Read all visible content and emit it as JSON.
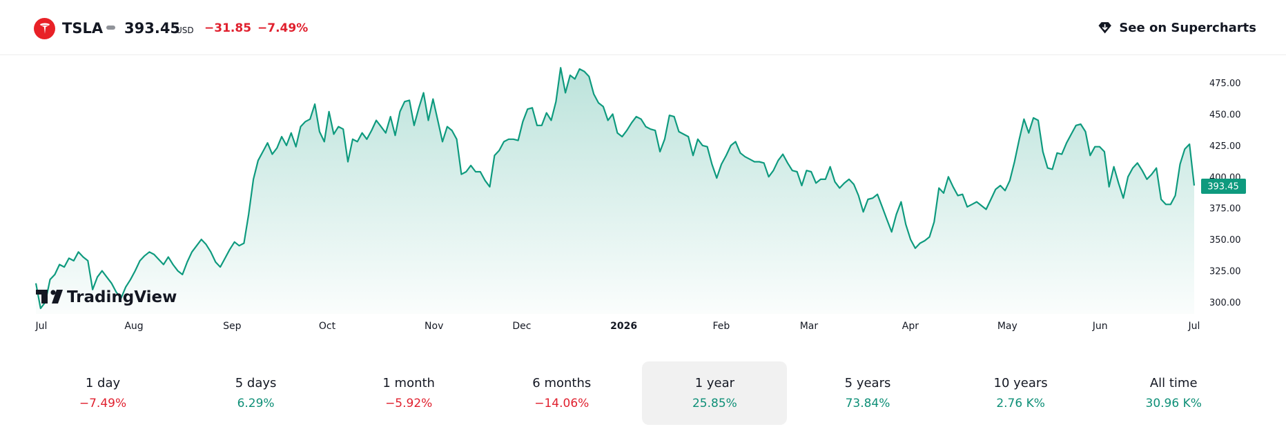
{
  "header": {
    "symbol": "TSLA",
    "price": "393.45",
    "currency": "USD",
    "change": "−31.85",
    "change_pct": "−7.49%",
    "supercharts_label": "See on Supercharts"
  },
  "colors": {
    "line": "#0e9a7e",
    "positive": "#0e8f77",
    "negative": "#e0202e",
    "brand_logo": "#e82127"
  },
  "chart_data": {
    "type": "area",
    "watermark": "TradingView",
    "x_ticks": [
      "Jul",
      "Aug",
      "Sep",
      "Oct",
      "Nov",
      "Dec",
      "2026",
      "Feb",
      "Mar",
      "Apr",
      "May",
      "Jun",
      "Jul"
    ],
    "y_ticks": [
      "300.00",
      "325.00",
      "350.00",
      "375.00",
      "400.00",
      "425.00",
      "450.00",
      "475.00"
    ],
    "ylim": [
      290,
      490
    ],
    "last_price_label": "393.45",
    "grid": false,
    "series": [
      {
        "values": [
          315,
          295,
          300,
          318,
          322,
          330,
          328,
          335,
          333,
          340,
          336,
          333,
          310,
          320,
          325,
          320,
          315,
          308,
          303,
          312,
          318,
          325,
          333,
          337,
          340,
          338,
          334,
          330,
          336,
          330,
          325,
          322,
          332,
          340,
          345,
          350,
          346,
          340,
          332,
          328,
          335,
          342,
          348,
          345,
          347,
          370,
          398,
          413,
          420,
          427,
          418,
          423,
          432,
          425,
          435,
          424,
          440,
          444,
          446,
          458,
          436,
          428,
          452,
          434,
          440,
          438,
          412,
          430,
          428,
          435,
          430,
          437,
          445,
          440,
          435,
          448,
          433,
          452,
          460,
          461,
          441,
          455,
          467,
          445,
          462,
          445,
          428,
          440,
          437,
          430,
          402,
          404,
          409,
          404,
          404,
          397,
          392,
          417,
          421,
          428,
          430,
          430,
          429,
          444,
          454,
          455,
          441,
          441,
          451,
          445,
          460,
          487,
          467,
          481,
          478,
          486,
          484,
          480,
          466,
          459,
          456,
          445,
          450,
          435,
          432,
          437,
          443,
          448,
          446,
          440,
          438,
          437,
          420,
          430,
          449,
          448,
          436,
          434,
          432,
          417,
          430,
          425,
          424,
          410,
          399,
          410,
          417,
          425,
          428,
          419,
          416,
          414,
          412,
          412,
          411,
          400,
          405,
          413,
          418,
          411,
          405,
          404,
          393,
          405,
          404,
          395,
          398,
          398,
          408,
          396,
          391,
          395,
          398,
          394,
          385,
          372,
          382,
          383,
          386,
          376,
          366,
          356,
          370,
          380,
          362,
          350,
          343,
          347,
          349,
          352,
          364,
          391,
          387,
          400,
          392,
          385,
          386,
          376,
          378,
          380,
          377,
          374,
          382,
          390,
          393,
          389,
          397,
          412,
          430,
          446,
          435,
          447,
          445,
          420,
          407,
          406,
          419,
          418,
          427,
          434,
          441,
          442,
          436,
          417,
          424,
          424,
          420,
          392,
          408,
          395,
          383,
          400,
          407,
          411,
          405,
          398,
          402,
          407,
          382,
          378,
          378,
          385,
          410,
          422,
          426,
          393
        ]
      }
    ]
  },
  "ranges": [
    {
      "label": "1 day",
      "value": "−7.49%",
      "sign": "neg"
    },
    {
      "label": "5 days",
      "value": "6.29%",
      "sign": "pos"
    },
    {
      "label": "1 month",
      "value": "−5.92%",
      "sign": "neg"
    },
    {
      "label": "6 months",
      "value": "−14.06%",
      "sign": "neg"
    },
    {
      "label": "1 year",
      "value": "25.85%",
      "sign": "pos",
      "active": true
    },
    {
      "label": "5 years",
      "value": "73.84%",
      "sign": "pos"
    },
    {
      "label": "10 years",
      "value": "2.76 K%",
      "sign": "pos"
    },
    {
      "label": "All time",
      "value": "30.96 K%",
      "sign": "pos"
    }
  ]
}
